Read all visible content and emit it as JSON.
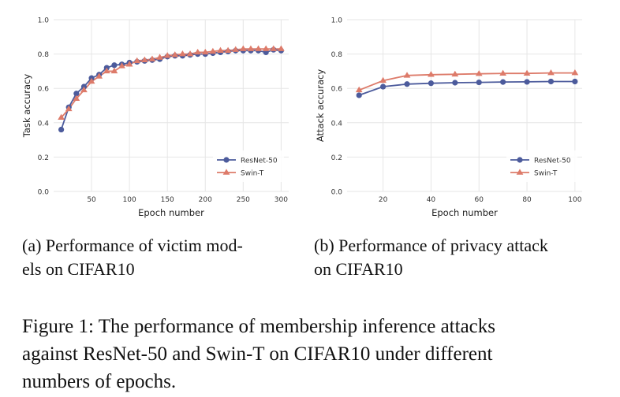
{
  "chart_data": [
    {
      "type": "line",
      "xlabel": "Epoch number",
      "ylabel": "Task accuracy",
      "xlim": [
        0,
        310
      ],
      "ylim": [
        0,
        1.0
      ],
      "xticks": [
        50,
        100,
        150,
        200,
        250,
        300
      ],
      "yticks": [
        0.0,
        0.2,
        0.4,
        0.6,
        0.8,
        1.0
      ],
      "grid": true,
      "legend_position": "lower-right",
      "series": [
        {
          "name": "ResNet-50",
          "color": "#4c5b9c",
          "marker": "circle",
          "x": [
            10,
            20,
            30,
            40,
            50,
            60,
            70,
            80,
            90,
            100,
            110,
            120,
            130,
            140,
            150,
            160,
            170,
            180,
            190,
            200,
            210,
            220,
            230,
            240,
            250,
            260,
            270,
            280,
            290,
            300
          ],
          "y": [
            0.36,
            0.49,
            0.57,
            0.61,
            0.66,
            0.68,
            0.72,
            0.735,
            0.74,
            0.75,
            0.755,
            0.76,
            0.765,
            0.77,
            0.785,
            0.79,
            0.79,
            0.795,
            0.8,
            0.8,
            0.805,
            0.81,
            0.815,
            0.82,
            0.82,
            0.82,
            0.82,
            0.81,
            0.825,
            0.82
          ]
        },
        {
          "name": "Swin-T",
          "color": "#dd7b6a",
          "marker": "triangle",
          "x": [
            10,
            20,
            30,
            40,
            50,
            60,
            70,
            80,
            90,
            100,
            110,
            120,
            130,
            140,
            150,
            160,
            170,
            180,
            190,
            200,
            210,
            220,
            230,
            240,
            250,
            260,
            270,
            280,
            290,
            300
          ],
          "y": [
            0.43,
            0.48,
            0.54,
            0.59,
            0.64,
            0.67,
            0.7,
            0.7,
            0.73,
            0.74,
            0.76,
            0.765,
            0.77,
            0.78,
            0.79,
            0.795,
            0.8,
            0.8,
            0.81,
            0.81,
            0.815,
            0.82,
            0.82,
            0.825,
            0.83,
            0.83,
            0.83,
            0.83,
            0.83,
            0.83
          ]
        }
      ]
    },
    {
      "type": "line",
      "xlabel": "Epoch number",
      "ylabel": "Attack accuracy",
      "xlim": [
        5,
        103
      ],
      "ylim": [
        0,
        1.0
      ],
      "xticks": [
        20,
        40,
        60,
        80,
        100
      ],
      "yticks": [
        0.0,
        0.2,
        0.4,
        0.6,
        0.8,
        1.0
      ],
      "grid": true,
      "legend_position": "lower-right",
      "series": [
        {
          "name": "ResNet-50",
          "color": "#4c5b9c",
          "marker": "circle",
          "x": [
            10,
            20,
            30,
            40,
            50,
            60,
            70,
            80,
            90,
            100
          ],
          "y": [
            0.56,
            0.61,
            0.625,
            0.63,
            0.633,
            0.635,
            0.637,
            0.638,
            0.64,
            0.64
          ]
        },
        {
          "name": "Swin-T",
          "color": "#dd7b6a",
          "marker": "triangle",
          "x": [
            10,
            20,
            30,
            40,
            50,
            60,
            70,
            80,
            90,
            100
          ],
          "y": [
            0.59,
            0.645,
            0.675,
            0.68,
            0.682,
            0.685,
            0.687,
            0.687,
            0.69,
            0.69
          ]
        }
      ]
    }
  ],
  "captions": {
    "a_line1": "(a) Performance of victim mod-",
    "a_line2": "els on CIFAR10",
    "b_line1": "(b) Performance of privacy attack",
    "b_line2": "on CIFAR10",
    "figure_lines": [
      "Figure 1: The performance of membership inference attacks",
      "against ResNet-50 and Swin-T on CIFAR10 under different",
      "numbers of epochs."
    ]
  }
}
